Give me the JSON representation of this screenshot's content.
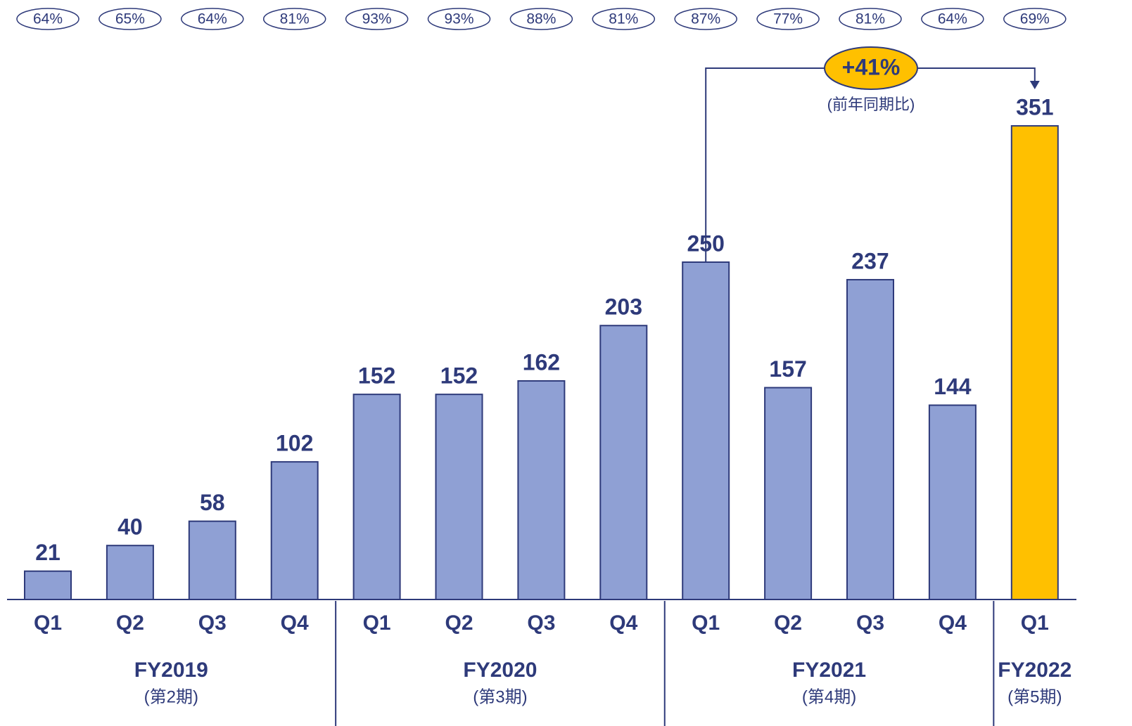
{
  "chart_data": {
    "type": "bar",
    "categories": [
      "Q1",
      "Q2",
      "Q3",
      "Q4",
      "Q1",
      "Q2",
      "Q3",
      "Q4",
      "Q1",
      "Q2",
      "Q3",
      "Q4",
      "Q1"
    ],
    "values": [
      21,
      40,
      58,
      102,
      152,
      152,
      162,
      203,
      250,
      157,
      237,
      144,
      351
    ],
    "colors": [
      "#8fa0d4",
      "#8fa0d4",
      "#8fa0d4",
      "#8fa0d4",
      "#8fa0d4",
      "#8fa0d4",
      "#8fa0d4",
      "#8fa0d4",
      "#8fa0d4",
      "#8fa0d4",
      "#8fa0d4",
      "#8fa0d4",
      "#ffc000"
    ],
    "ratios": [
      64,
      65,
      64,
      81,
      93,
      93,
      88,
      81,
      87,
      77,
      81,
      64,
      69
    ],
    "ratio_labels": [
      "64%",
      "65%",
      "64%",
      "81%",
      "93%",
      "93%",
      "88%",
      "81%",
      "87%",
      "77%",
      "81%",
      "64%",
      "69%"
    ],
    "groups": [
      {
        "name": "FY2019",
        "sub": "(第2期)",
        "size": 4
      },
      {
        "name": "FY2020",
        "sub": "(第3期)",
        "size": 4
      },
      {
        "name": "FY2021",
        "sub": "(第4期)",
        "size": 4
      },
      {
        "name": "FY2022",
        "sub": "(第5期)",
        "size": 1
      }
    ],
    "growth": {
      "value": 41,
      "label": "+41%",
      "note": "(前年同期比)"
    }
  }
}
